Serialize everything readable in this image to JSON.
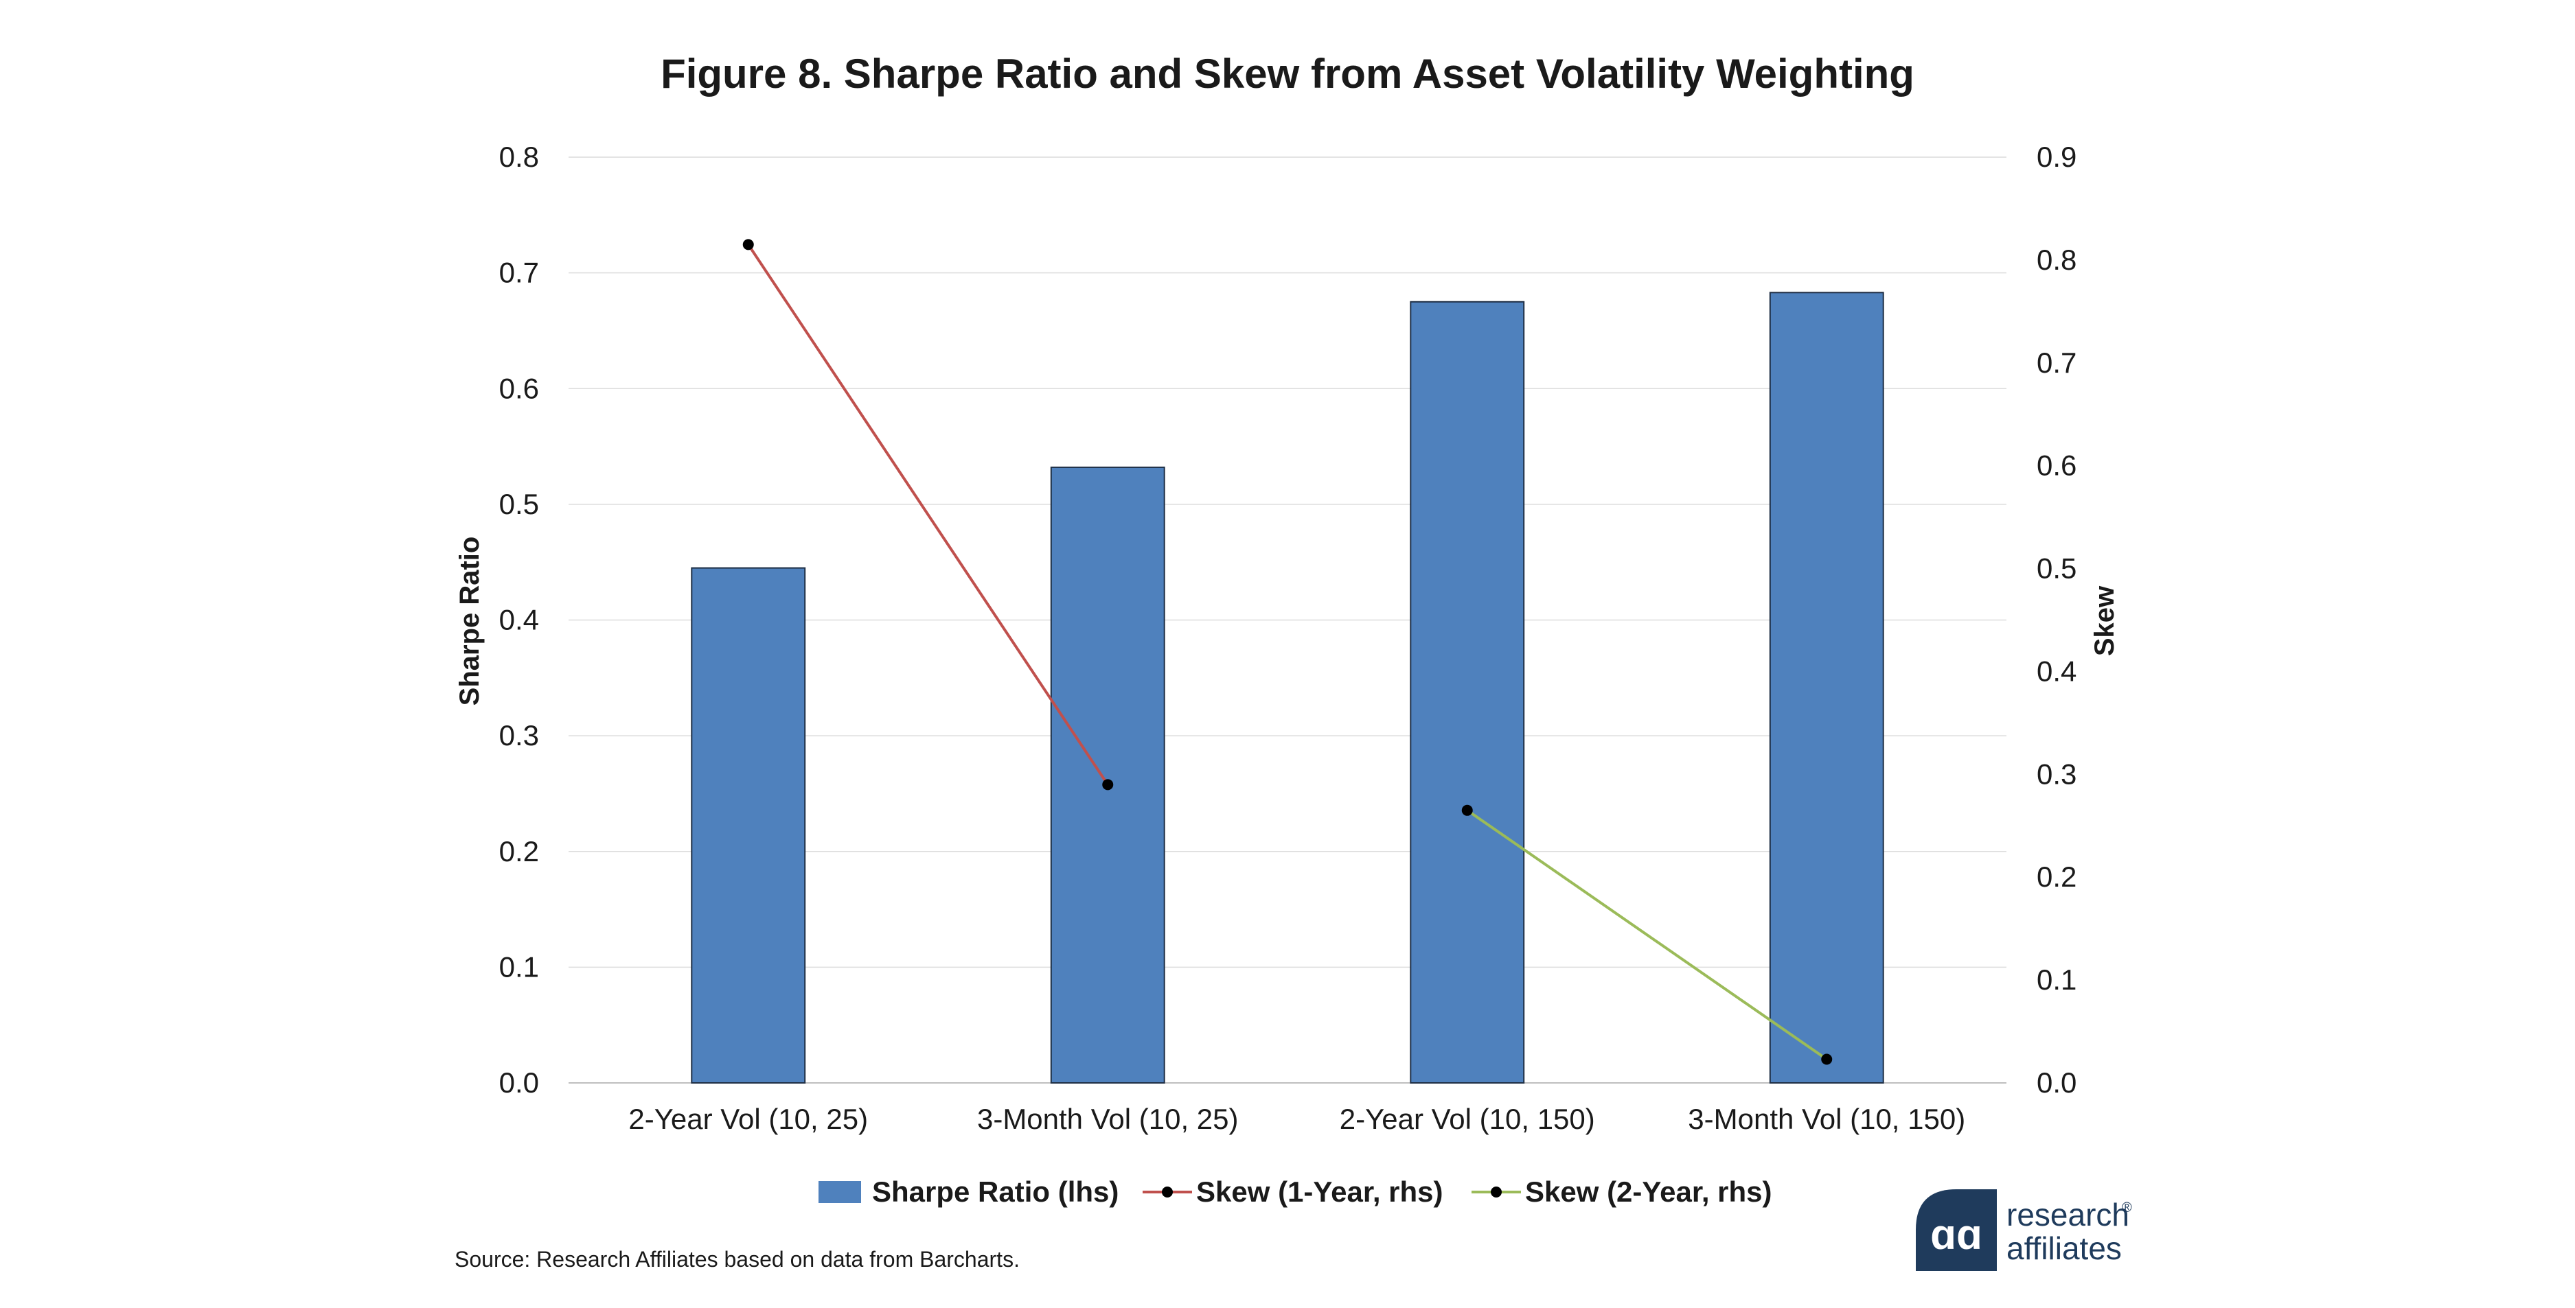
{
  "chart_data": {
    "type": "bar",
    "title": "Figure 8. Sharpe Ratio and Skew from Asset Volatility Weighting",
    "categories": [
      "2-Year Vol (10, 25)",
      "3-Month Vol (10, 25)",
      "2-Year Vol (10, 150)",
      "3-Month Vol (10, 150)"
    ],
    "ylabel": "Sharpe Ratio",
    "y2label": "Skew",
    "ylim": [
      0,
      0.8
    ],
    "y2lim": [
      0,
      0.9
    ],
    "yticks": [
      "0.0",
      "0.1",
      "0.2",
      "0.3",
      "0.4",
      "0.5",
      "0.6",
      "0.7",
      "0.8"
    ],
    "y2ticks": [
      "0.0",
      "0.1",
      "0.2",
      "0.3",
      "0.4",
      "0.5",
      "0.6",
      "0.7",
      "0.8",
      "0.9"
    ],
    "grid": true,
    "legend_position": "bottom",
    "series": [
      {
        "name": "Sharpe Ratio (lhs)",
        "kind": "bar",
        "axis": "left",
        "color": "#4f81bd",
        "values": [
          0.445,
          0.532,
          0.675,
          0.683
        ]
      },
      {
        "name": "Skew (1-Year, rhs)",
        "kind": "line",
        "axis": "right",
        "color": "#c0504d",
        "values": [
          0.815,
          0.29,
          null,
          null
        ]
      },
      {
        "name": "Skew (2-Year, rhs)",
        "kind": "line",
        "axis": "right",
        "color": "#9bbb59",
        "values": [
          null,
          null,
          0.265,
          0.023
        ]
      }
    ]
  },
  "source_note": "Source: Research Affiliates based on data from Barcharts.",
  "logo": {
    "line1": "research",
    "line2": "affiliates",
    "registered_mark": "®",
    "color": "#1f3b5c"
  }
}
